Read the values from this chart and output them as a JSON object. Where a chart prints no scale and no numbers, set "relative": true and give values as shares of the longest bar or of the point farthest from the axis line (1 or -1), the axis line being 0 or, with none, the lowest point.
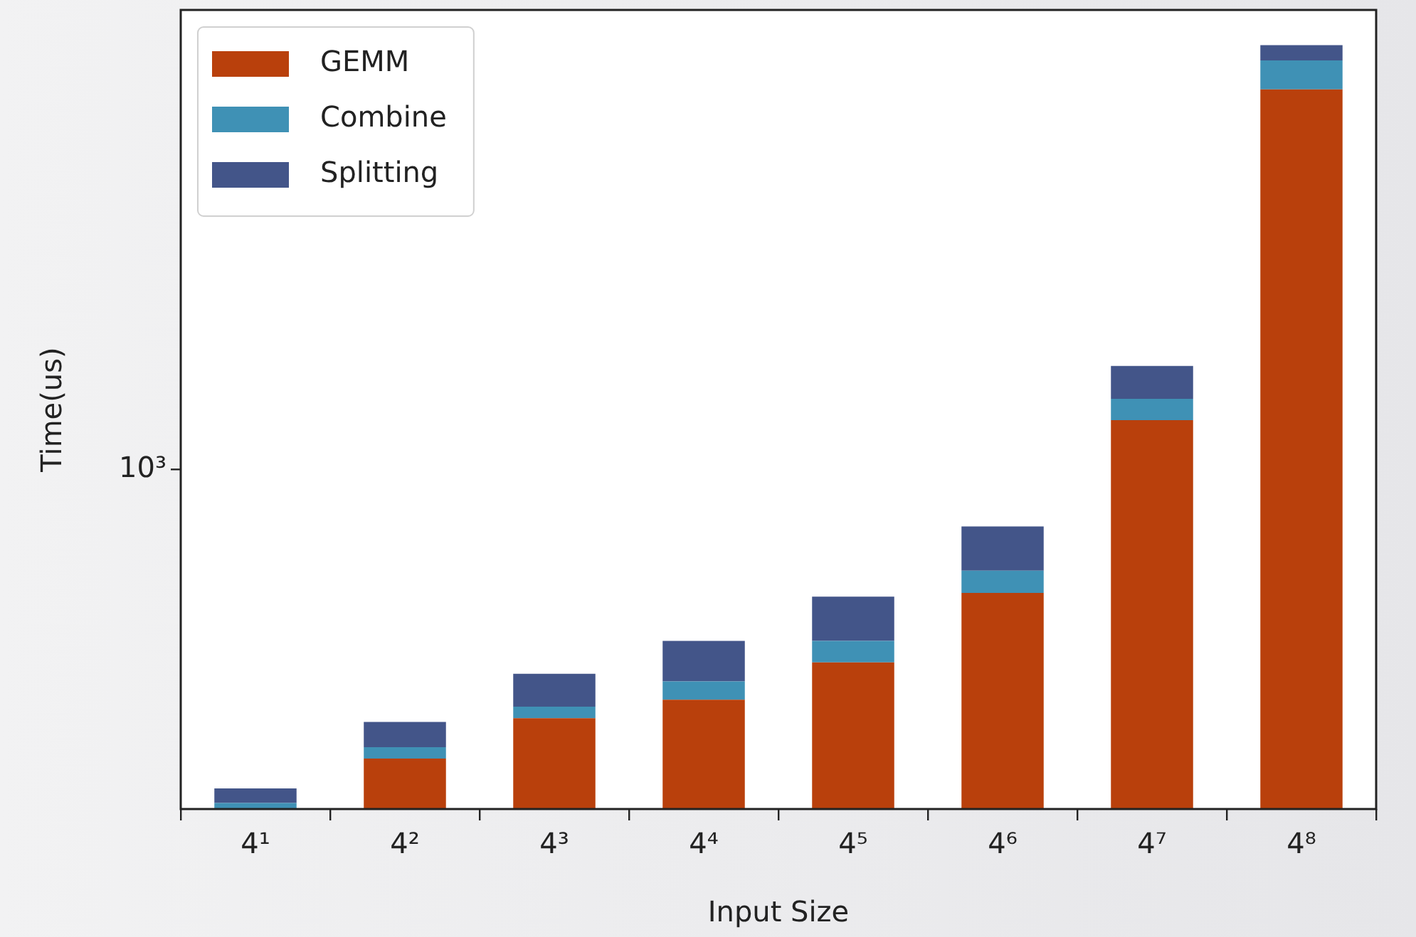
{
  "chart_data": {
    "type": "bar",
    "xlabel": "Input Size",
    "ylabel": "Time(us)",
    "categories": [
      "4¹",
      "4²",
      "4³",
      "4⁴",
      "4⁵",
      "4⁶",
      "4⁷",
      "4⁸"
    ],
    "series": [
      {
        "name": "GEMM",
        "color": "#b9400c",
        "values": [
          0,
          0.066,
          0.119,
          0.143,
          0.192,
          0.283,
          0.509,
          0.942
        ]
      },
      {
        "name": "Combine",
        "color": "#3f91b5",
        "values": [
          0.008,
          0.015,
          0.015,
          0.024,
          0.028,
          0.029,
          0.028,
          0.038
        ]
      },
      {
        "name": "Splitting",
        "color": "#435589",
        "values": [
          0.019,
          0.033,
          0.043,
          0.053,
          0.058,
          0.058,
          0.043,
          0.02
        ]
      }
    ],
    "stacked": true,
    "relative": true,
    "annotations": [
      "10³"
    ],
    "grid": false,
    "legend": "top left"
  }
}
